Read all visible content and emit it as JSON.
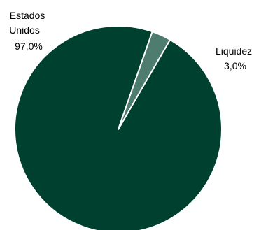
{
  "chart_data": {
    "type": "pie",
    "slices": [
      {
        "label_lines": [
          "Estados",
          "Unidos"
        ],
        "percent_label": "97,0%",
        "value": 97.0,
        "color": "#00402f"
      },
      {
        "label_lines": [
          "Liquidez"
        ],
        "percent_label": "3,0%",
        "value": 3.0,
        "color": "#4e7d70"
      }
    ],
    "start_angle_deg": 60,
    "slice_border_color": "#ffffff",
    "legend": "none"
  }
}
